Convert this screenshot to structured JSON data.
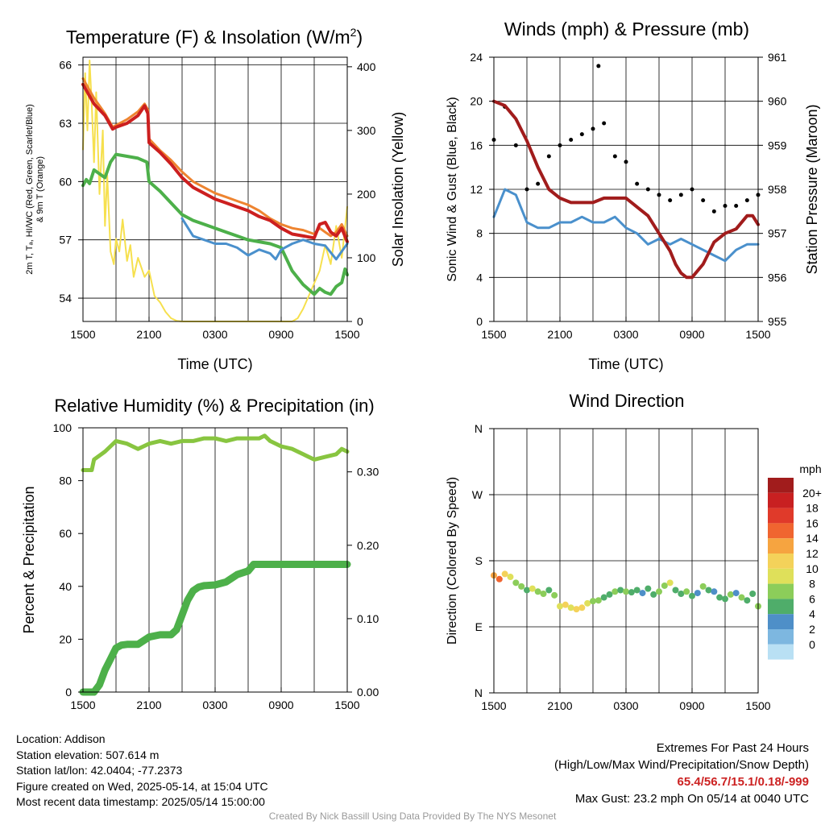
{
  "colors": {
    "red": "#cc1f1f",
    "orange": "#ee8430",
    "green": "#4db04a",
    "blue": "#4a90cc",
    "yellow": "#f6e04e",
    "black": "#000000",
    "maroon": "#a11c1c",
    "light_green": "#88c540",
    "pressure": "#a11c1c",
    "gust": "#000000",
    "sonic": "#4a90cc"
  },
  "chart_data": [
    {
      "id": "temperature",
      "type": "line",
      "title": "Temperature (F) & Insolation (W/m2)",
      "title_main": "Temperature (F) & Insolation (W/m",
      "title_sup": "2",
      "title_end": ")",
      "xlabel": "Time (UTC)",
      "ylabel_left_line1": "2m T, Tₐ, HI/WC (Red, Green, Scarlet/Blue)",
      "ylabel_left_line2": "& 9m T (Orange)",
      "ylabel_right": "Solar Insolation (Yellow)",
      "x_ticks": [
        "1500",
        "2100",
        "0300",
        "0900",
        "1500"
      ],
      "xlim_hours": [
        0,
        24
      ],
      "ylim_left": [
        52.8,
        66.4
      ],
      "yticks_left": [
        54,
        57,
        60,
        63,
        66
      ],
      "ylim_right": [
        0,
        415
      ],
      "yticks_right": [
        0,
        100,
        200,
        300,
        400
      ],
      "series": [
        {
          "name": "2m T",
          "color_key": "red",
          "axis": "left",
          "width": 4,
          "x": [
            0,
            0.5,
            1,
            2,
            2.7,
            3,
            4,
            5,
            5.6,
            5.9,
            6,
            7,
            8,
            9,
            10,
            11,
            12,
            13,
            14,
            15,
            16,
            17,
            18,
            19,
            20,
            21,
            21.5,
            22,
            22.5,
            23,
            23.5,
            24
          ],
          "y": [
            65.0,
            64.5,
            64.0,
            63.4,
            62.7,
            62.8,
            63.0,
            63.4,
            63.9,
            63.5,
            62.0,
            61.5,
            60.9,
            60.2,
            59.7,
            59.4,
            59.1,
            58.9,
            58.7,
            58.5,
            58.2,
            58.0,
            57.6,
            57.3,
            57.2,
            57.1,
            57.8,
            57.9,
            57.4,
            57.2,
            57.6,
            56.9
          ]
        },
        {
          "name": "9m T",
          "color_key": "orange",
          "axis": "left",
          "width": 3,
          "x": [
            0,
            0.5,
            1,
            2,
            2.7,
            3,
            4,
            5,
            5.6,
            5.9,
            6,
            7,
            8,
            9,
            10,
            11,
            12,
            13,
            14,
            15,
            16,
            17,
            18,
            19,
            20,
            21,
            21.5,
            22,
            22.5,
            23,
            23.5,
            24
          ],
          "y": [
            65.3,
            64.8,
            64.3,
            63.5,
            62.8,
            62.9,
            63.2,
            63.6,
            64.0,
            63.7,
            62.2,
            61.6,
            61.1,
            60.5,
            60.0,
            59.7,
            59.4,
            59.2,
            59.0,
            58.8,
            58.5,
            58.1,
            57.8,
            57.6,
            57.5,
            57.3,
            57.6,
            57.4,
            57.2,
            57.4,
            57.8,
            57.2
          ]
        },
        {
          "name": "Td",
          "color_key": "green",
          "axis": "left",
          "width": 4,
          "x": [
            0,
            0.3,
            0.6,
            1,
            1.5,
            2,
            2.5,
            3,
            4,
            5,
            5.8,
            6,
            7,
            8,
            9,
            10,
            11,
            12,
            13,
            14,
            15,
            16,
            17,
            18,
            19,
            20,
            21,
            21.5,
            22,
            22.5,
            23,
            23.5,
            23.8,
            24
          ],
          "y": [
            59.8,
            60.1,
            59.9,
            60.6,
            60.4,
            60.2,
            61.0,
            61.4,
            61.3,
            61.2,
            61.0,
            60.0,
            59.5,
            58.9,
            58.3,
            58.0,
            57.8,
            57.6,
            57.4,
            57.2,
            57.0,
            56.9,
            56.8,
            56.6,
            55.4,
            54.7,
            54.2,
            54.5,
            54.3,
            54.2,
            54.6,
            54.8,
            55.5,
            55.2
          ]
        },
        {
          "name": "WC",
          "color_key": "blue",
          "axis": "left",
          "width": 3,
          "x": [
            9,
            10,
            11,
            12,
            13,
            14,
            15,
            16,
            17,
            17.5,
            18,
            19,
            20,
            21,
            22,
            23,
            24
          ],
          "y": [
            58.1,
            57.2,
            57.0,
            56.8,
            56.8,
            56.6,
            56.2,
            56.5,
            56.3,
            56.0,
            56.5,
            56.8,
            57.0,
            56.8,
            56.7,
            56.0,
            56.8
          ]
        },
        {
          "name": "Insolation",
          "color_key": "yellow",
          "axis": "right",
          "width": 2,
          "x": [
            0,
            0.2,
            0.4,
            0.6,
            0.8,
            1.0,
            1.2,
            1.5,
            1.8,
            2.0,
            2.2,
            2.5,
            2.8,
            3.0,
            3.3,
            3.6,
            4.0,
            4.3,
            4.6,
            5.0,
            5.3,
            5.6,
            6.0,
            6.5,
            7.0,
            7.5,
            8.0,
            8.5,
            9,
            12,
            15,
            18,
            19,
            19.5,
            20,
            20.5,
            21,
            21.5,
            22,
            22.5,
            23,
            23.5,
            24
          ],
          "y": [
            270,
            390,
            300,
            410,
            340,
            250,
            360,
            200,
            300,
            150,
            230,
            110,
            90,
            130,
            110,
            160,
            95,
            120,
            70,
            100,
            85,
            70,
            80,
            40,
            30,
            15,
            5,
            1,
            0,
            0,
            0,
            0,
            0,
            5,
            20,
            40,
            60,
            80,
            120,
            90,
            150,
            100,
            180
          ]
        }
      ]
    },
    {
      "id": "winds",
      "type": "line",
      "title": "Winds (mph) & Pressure (mb)",
      "xlabel": "Time (UTC)",
      "ylabel_left": "Sonic Wind & Gust (Blue, Black)",
      "ylabel_right": "Station Pressure (Maroon)",
      "x_ticks": [
        "1500",
        "2100",
        "0300",
        "0900",
        "1500"
      ],
      "xlim_hours": [
        0,
        24
      ],
      "ylim_left": [
        0,
        24
      ],
      "yticks_left": [
        0,
        4,
        8,
        12,
        16,
        20,
        24
      ],
      "ylim_right": [
        955,
        961
      ],
      "yticks_right": [
        955,
        956,
        957,
        958,
        959,
        960,
        961
      ],
      "series": [
        {
          "name": "Sonic Wind",
          "color_key": "sonic",
          "axis": "left",
          "width": 3,
          "x": [
            0,
            1,
            2,
            3,
            4,
            5,
            6,
            7,
            8,
            9,
            10,
            11,
            12,
            13,
            14,
            15,
            16,
            17,
            18,
            19,
            20,
            21,
            22,
            23,
            24
          ],
          "y": [
            9.5,
            12.0,
            11.5,
            9.0,
            8.5,
            8.5,
            9.0,
            9.0,
            9.5,
            9.0,
            9.0,
            9.5,
            8.5,
            8.0,
            7.0,
            7.5,
            7.0,
            7.5,
            7.0,
            6.5,
            6.0,
            5.5,
            6.5,
            7.0,
            7.0
          ]
        },
        {
          "name": "Gust",
          "color_key": "gust",
          "axis": "left",
          "style": "dots",
          "x": [
            0,
            1,
            2,
            3,
            4,
            5,
            6,
            7,
            8,
            9,
            9.5,
            10,
            11,
            12,
            13,
            14,
            15,
            16,
            17,
            18,
            19,
            20,
            21,
            22,
            23,
            24
          ],
          "y": [
            16.5,
            19.5,
            16.0,
            12.0,
            12.5,
            15.0,
            16.0,
            16.5,
            17.0,
            17.5,
            23.2,
            18.0,
            15.0,
            14.5,
            12.5,
            12.0,
            11.5,
            11.0,
            11.5,
            12.0,
            11.0,
            10.0,
            10.5,
            10.5,
            11.0,
            11.5
          ]
        },
        {
          "name": "Pressure",
          "color_key": "pressure",
          "axis": "right",
          "width": 4,
          "x": [
            0,
            1,
            2,
            3,
            4,
            5,
            6,
            7,
            8,
            9,
            10,
            11,
            12,
            13,
            14,
            15,
            16,
            16.5,
            17,
            17.5,
            18,
            19,
            20,
            21,
            22,
            23,
            23.5,
            24
          ],
          "y": [
            960.0,
            959.9,
            959.6,
            959.1,
            958.5,
            958.0,
            957.8,
            957.7,
            957.7,
            957.7,
            957.8,
            957.8,
            957.8,
            957.6,
            957.4,
            957.0,
            956.6,
            956.3,
            956.1,
            956.0,
            956.0,
            956.3,
            956.8,
            957.0,
            957.1,
            957.4,
            957.4,
            957.2
          ]
        }
      ]
    },
    {
      "id": "humidity",
      "type": "line",
      "title": "Relative Humidity (%) & Precipitation (in)",
      "ylabel_left": "Percent & Precipitation",
      "x_ticks": [
        "1500",
        "2100",
        "0300",
        "0900",
        "1500"
      ],
      "xlim_hours": [
        0,
        24
      ],
      "ylim_left": [
        0,
        100
      ],
      "yticks_left": [
        0,
        20,
        40,
        60,
        80,
        100
      ],
      "ylim_right": [
        0,
        0.36
      ],
      "yticks_right": [
        "0.00",
        "0.10",
        "0.20",
        "0.30"
      ],
      "yticks_right_values": [
        0,
        0.1,
        0.2,
        0.3
      ],
      "series": [
        {
          "name": "Relative Humidity",
          "color_key": "light_green",
          "axis": "left",
          "width": 5,
          "x": [
            0,
            0.8,
            1,
            2,
            3,
            4,
            5,
            6,
            7,
            8,
            9,
            10,
            11,
            12,
            13,
            14,
            15,
            16,
            16.5,
            17,
            18,
            19,
            20,
            21,
            22,
            23,
            23.5,
            24
          ],
          "y": [
            84,
            84,
            88,
            91,
            95,
            94,
            92,
            94,
            95,
            94,
            95,
            95,
            96,
            96,
            95,
            96,
            96,
            96,
            97,
            95,
            93,
            92,
            90,
            88,
            89,
            90,
            92,
            91
          ]
        },
        {
          "name": "Precipitation",
          "color_key": "green",
          "axis": "right",
          "width": 9,
          "x": [
            0,
            1,
            1.5,
            2,
            2.5,
            3,
            3.5,
            4,
            5,
            6,
            7,
            8,
            8.5,
            9,
            9.5,
            10,
            10.5,
            11,
            12,
            13,
            14,
            15,
            15.5,
            16,
            24
          ],
          "y": [
            0,
            0,
            0.01,
            0.03,
            0.045,
            0.06,
            0.064,
            0.065,
            0.065,
            0.075,
            0.078,
            0.078,
            0.085,
            0.105,
            0.125,
            0.138,
            0.143,
            0.145,
            0.146,
            0.15,
            0.16,
            0.165,
            0.174,
            0.174,
            0.174
          ]
        }
      ]
    },
    {
      "id": "direction",
      "type": "scatter",
      "title": "Wind Direction",
      "ylabel_left": "Direction (Colored By Speed)",
      "x_ticks": [
        "1500",
        "2100",
        "0300",
        "0900",
        "1500"
      ],
      "xlim_hours": [
        0,
        24
      ],
      "ylim": [
        0,
        360
      ],
      "ytick_labels": [
        "N",
        "E",
        "S",
        "W",
        "N"
      ],
      "yticks_deg": [
        0,
        90,
        180,
        270,
        360
      ],
      "x": [
        0,
        0.5,
        1,
        1.5,
        2,
        2.5,
        3,
        3.5,
        4,
        4.5,
        5,
        5.5,
        6,
        6.5,
        7,
        7.5,
        8,
        8.5,
        9,
        9.5,
        10,
        10.5,
        11,
        11.5,
        12,
        12.5,
        13,
        13.5,
        14,
        14.5,
        15,
        15.5,
        16,
        16.5,
        17,
        17.5,
        18,
        18.5,
        19,
        19.5,
        20,
        20.5,
        21,
        21.5,
        22,
        22.5,
        23,
        23.5,
        24
      ],
      "y": [
        160,
        155,
        162,
        158,
        150,
        145,
        140,
        142,
        138,
        135,
        140,
        133,
        118,
        120,
        116,
        114,
        116,
        122,
        125,
        126,
        130,
        134,
        138,
        140,
        138,
        137,
        140,
        136,
        142,
        134,
        138,
        146,
        150,
        140,
        135,
        138,
        132,
        136,
        145,
        140,
        138,
        130,
        128,
        134,
        136,
        130,
        126,
        135,
        118
      ],
      "speed": [
        14,
        16,
        12,
        10,
        9,
        8,
        7,
        10,
        9,
        8,
        7,
        8,
        11,
        12,
        10,
        12,
        13,
        11,
        9,
        8,
        7,
        6,
        8,
        7,
        8,
        6,
        7,
        5,
        6,
        7,
        8,
        9,
        10,
        7,
        6,
        8,
        7,
        5,
        8,
        6,
        4,
        7,
        6,
        8,
        5,
        9,
        7,
        6,
        8
      ],
      "colorbar": {
        "unit": "mph",
        "labels": [
          "20+",
          "18",
          "16",
          "14",
          "12",
          "10",
          "8",
          "6",
          "4",
          "2",
          "0"
        ],
        "colors": [
          "#a11c1c",
          "#c82021",
          "#e03a2a",
          "#f06530",
          "#f6a440",
          "#f4d25a",
          "#dfe05a",
          "#8ccd5a",
          "#4fad6a",
          "#4e8fc8",
          "#7db7e0",
          "#b9e0f4"
        ]
      }
    }
  ],
  "info": {
    "location": "Location: Addison",
    "elevation": "Station elevation: 507.614 m",
    "latlon": "Station lat/lon: 42.0404; -77.2373",
    "created": "Figure created on Wed, 2025-05-14, at 15:04 UTC",
    "recent": "Most recent data timestamp: 2025/05/14 15:00:00"
  },
  "extremes": {
    "title": "Extremes For Past 24 Hours",
    "subtitle": "(High/Low/Max Wind/Precipitation/Snow Depth)",
    "values": "65.4/56.7/15.1/0.18/-999",
    "gust": "Max Gust: 23.2 mph On 05/14 at 0040 UTC"
  },
  "footer": "Created By Nick Bassill Using Data Provided By The NYS Mesonet"
}
